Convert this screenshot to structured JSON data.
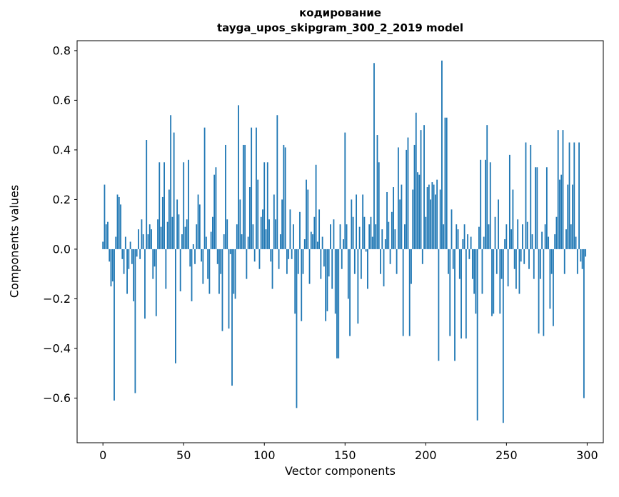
{
  "figure": {
    "title_line1": "кодирование",
    "title_line2": "tayga_upos_skipgram_300_2_2019 model",
    "xlabel": "Vector components",
    "ylabel": "Components values"
  },
  "chart_data": {
    "type": "bar",
    "title": "кодирование\ntayga_upos_skipgram_300_2_2019 model",
    "xlabel": "Vector components",
    "ylabel": "Components values",
    "legend": "none",
    "grid": false,
    "bar_color": "#1f77b4",
    "xlim": [
      -16,
      310
    ],
    "ylim": [
      -0.78,
      0.84
    ],
    "xticks": [
      0,
      50,
      100,
      150,
      200,
      250,
      300
    ],
    "yticks": [
      -0.6,
      -0.4,
      -0.2,
      0.0,
      0.2,
      0.4,
      0.6,
      0.8
    ],
    "x_start": 0,
    "values": [
      0.03,
      0.26,
      0.1,
      0.11,
      -0.05,
      -0.15,
      -0.13,
      -0.61,
      0.05,
      0.22,
      0.21,
      0.18,
      -0.04,
      -0.1,
      0.05,
      -0.18,
      -0.08,
      0.03,
      -0.06,
      -0.21,
      -0.58,
      -0.03,
      0.08,
      -0.04,
      0.12,
      0.06,
      -0.28,
      0.44,
      0.06,
      0.1,
      0.08,
      -0.12,
      -0.07,
      -0.27,
      0.12,
      0.35,
      0.09,
      0.21,
      0.35,
      -0.16,
      0.11,
      0.24,
      0.54,
      0.13,
      0.47,
      -0.46,
      0.2,
      0.14,
      -0.17,
      0.06,
      0.35,
      0.09,
      0.12,
      0.36,
      -0.07,
      -0.21,
      0.02,
      -0.06,
      0.1,
      0.22,
      0.18,
      -0.05,
      -0.14,
      0.49,
      0.05,
      -0.12,
      -0.18,
      0.07,
      0.13,
      0.3,
      0.33,
      -0.06,
      -0.18,
      -0.1,
      -0.33,
      0.06,
      0.42,
      0.12,
      -0.32,
      -0.02,
      -0.55,
      -0.18,
      -0.2,
      0.1,
      0.58,
      0.2,
      0.06,
      0.42,
      0.42,
      -0.12,
      0.05,
      0.25,
      0.49,
      0.1,
      -0.05,
      0.49,
      0.28,
      -0.08,
      0.13,
      0.16,
      0.35,
      0.08,
      0.35,
      0.12,
      -0.05,
      -0.16,
      0.22,
      0.12,
      0.54,
      -0.08,
      0.06,
      0.2,
      0.42,
      0.41,
      -0.1,
      -0.04,
      0.16,
      -0.04,
      0.1,
      -0.26,
      -0.64,
      -0.1,
      0.15,
      -0.29,
      -0.1,
      0.04,
      0.28,
      0.24,
      -0.14,
      0.07,
      0.06,
      0.13,
      0.34,
      0.03,
      0.16,
      -0.12,
      0.05,
      -0.07,
      -0.29,
      -0.25,
      -0.11,
      0.1,
      -0.16,
      0.12,
      -0.26,
      -0.44,
      -0.44,
      0.1,
      -0.08,
      0.04,
      0.47,
      0.1,
      -0.2,
      -0.35,
      0.2,
      0.13,
      -0.1,
      0.22,
      -0.3,
      0.09,
      -0.12,
      0.22,
      0.13,
      -0.01,
      -0.16,
      0.1,
      0.13,
      0.05,
      0.75,
      0.1,
      0.46,
      0.35,
      -0.1,
      0.08,
      -0.15,
      0.04,
      0.23,
      0.11,
      -0.06,
      0.15,
      0.25,
      0.08,
      -0.1,
      0.41,
      0.2,
      0.26,
      -0.35,
      0.1,
      0.4,
      0.45,
      -0.35,
      -0.14,
      0.24,
      0.42,
      0.55,
      0.31,
      0.3,
      0.48,
      -0.06,
      0.5,
      0.13,
      0.25,
      0.26,
      0.2,
      0.27,
      0.26,
      0.22,
      0.28,
      -0.45,
      0.24,
      0.76,
      0.1,
      0.53,
      0.53,
      -0.1,
      -0.35,
      0.16,
      -0.08,
      -0.45,
      0.1,
      0.08,
      -0.12,
      -0.36,
      0.04,
      0.1,
      -0.36,
      0.06,
      -0.04,
      0.05,
      -0.12,
      -0.18,
      -0.26,
      -0.69,
      0.09,
      0.36,
      -0.18,
      0.05,
      0.36,
      0.5,
      0.1,
      0.35,
      -0.27,
      -0.26,
      0.13,
      -0.1,
      0.2,
      -0.26,
      -0.12,
      -0.7,
      0.04,
      0.1,
      -0.15,
      0.38,
      0.08,
      0.24,
      -0.08,
      -0.16,
      0.12,
      -0.18,
      -0.05,
      0.1,
      -0.06,
      0.43,
      0.11,
      -0.08,
      0.42,
      0.06,
      -0.12,
      0.33,
      0.33,
      -0.34,
      -0.12,
      0.07,
      -0.35,
      0.1,
      0.33,
      0.05,
      -0.24,
      -0.1,
      -0.31,
      0.06,
      0.13,
      0.48,
      0.28,
      0.3,
      0.48,
      -0.1,
      0.08,
      0.26,
      0.43,
      0.1,
      0.26,
      0.43,
      0.05,
      -0.1,
      0.43,
      -0.05,
      -0.08,
      -0.6,
      -0.03
    ]
  }
}
